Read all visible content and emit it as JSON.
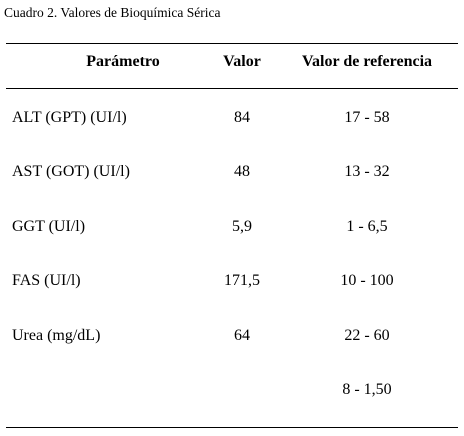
{
  "caption": "Cuadro 2. Valores de Bioquímica Sérica",
  "table": {
    "header": {
      "parameter": "Parámetro",
      "value": "Valor",
      "reference": "Valor de referencia"
    },
    "rows": [
      {
        "parameter": "ALT (GPT) (UI/l)",
        "value": "84",
        "reference": "17 - 58"
      },
      {
        "parameter": "AST (GOT) (UI/l)",
        "value": "48",
        "reference": "13 - 32"
      },
      {
        "parameter": "GGT (UI/l)",
        "value": "5,9",
        "reference": "1 - 6,5"
      },
      {
        "parameter": "FAS (UI/l)",
        "value": "171,5",
        "reference": "10 - 100"
      },
      {
        "parameter": "Urea (mg/dL)",
        "value": "64",
        "reference": "22 - 60"
      },
      {
        "reference": "8 - 1,50"
      }
    ]
  }
}
